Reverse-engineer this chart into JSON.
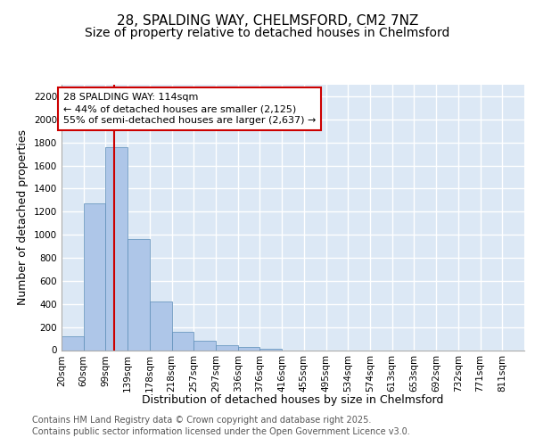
{
  "title_line1": "28, SPALDING WAY, CHELMSFORD, CM2 7NZ",
  "title_line2": "Size of property relative to detached houses in Chelmsford",
  "xlabel": "Distribution of detached houses by size in Chelmsford",
  "ylabel": "Number of detached properties",
  "bin_labels": [
    "20sqm",
    "60sqm",
    "99sqm",
    "139sqm",
    "178sqm",
    "218sqm",
    "257sqm",
    "297sqm",
    "336sqm",
    "376sqm",
    "416sqm",
    "455sqm",
    "495sqm",
    "534sqm",
    "574sqm",
    "613sqm",
    "653sqm",
    "692sqm",
    "732sqm",
    "771sqm",
    "811sqm"
  ],
  "bin_edges": [
    0,
    1,
    2,
    3,
    4,
    5,
    6,
    7,
    8,
    9,
    10,
    11,
    12,
    13,
    14,
    15,
    16,
    17,
    18,
    19,
    20,
    21
  ],
  "bar_heights": [
    120,
    1270,
    1760,
    960,
    420,
    155,
    80,
    40,
    25,
    10,
    0,
    0,
    0,
    0,
    0,
    0,
    0,
    0,
    0,
    0,
    0
  ],
  "bar_color": "#aec6e8",
  "bar_edgecolor": "#5b8db8",
  "red_line_x": 2.38,
  "red_line_color": "#cc0000",
  "annotation_text": "28 SPALDING WAY: 114sqm\n← 44% of detached houses are smaller (2,125)\n55% of semi-detached houses are larger (2,637) →",
  "annotation_box_color": "#ffffff",
  "annotation_box_edgecolor": "#cc0000",
  "ylim": [
    0,
    2300
  ],
  "yticks": [
    0,
    200,
    400,
    600,
    800,
    1000,
    1200,
    1400,
    1600,
    1800,
    2000,
    2200
  ],
  "fig_background_color": "#ffffff",
  "plot_background_color": "#dce8f5",
  "grid_color": "#ffffff",
  "footer_line1": "Contains HM Land Registry data © Crown copyright and database right 2025.",
  "footer_line2": "Contains public sector information licensed under the Open Government Licence v3.0.",
  "title_fontsize": 11,
  "subtitle_fontsize": 10,
  "axis_label_fontsize": 9,
  "tick_fontsize": 7.5,
  "annotation_fontsize": 8,
  "footer_fontsize": 7
}
